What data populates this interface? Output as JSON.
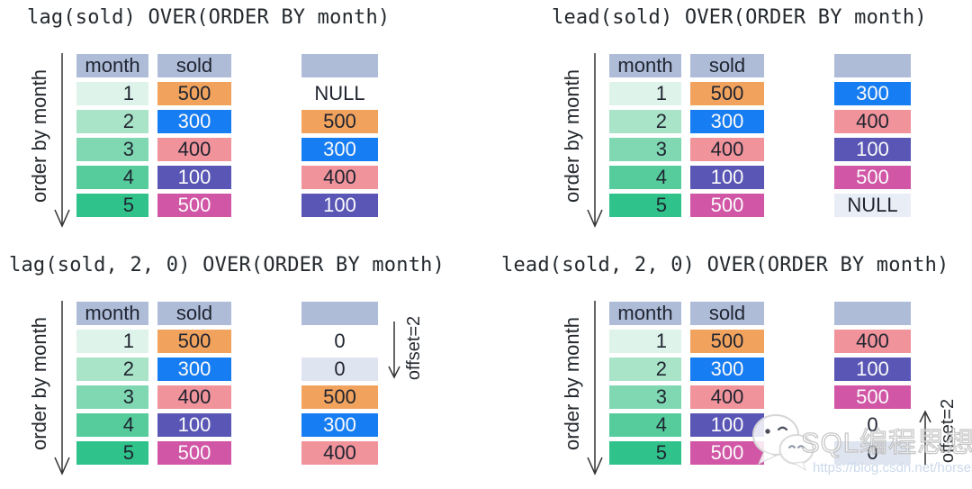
{
  "colors": {
    "header_bg": "#aebcd8",
    "green_1": "#def3e9",
    "green_2": "#a9e4c9",
    "green_3": "#7fd8b2",
    "green_4": "#56cc9c",
    "green_5": "#2fc28a",
    "orange": "#f1a35e",
    "blue": "#177df2",
    "salmon": "#f0939b",
    "purple": "#5956b6",
    "magenta": "#d156a6",
    "white_bg": "#ffffff",
    "null_bg": "#e9edf5",
    "zero_bg": "#dfe5f0",
    "text_dark": "#1f2430",
    "text_light": "#fafafa",
    "line": "#333333"
  },
  "quadrants": [
    {
      "title": "lag(sold) OVER(ORDER BY month)",
      "order_label": "order by month",
      "table": {
        "headers": [
          "month",
          "sold"
        ],
        "rows": [
          {
            "month": "1",
            "month_bg": "green_1",
            "sold": "500",
            "sold_bg": "orange",
            "sold_fg": "dark"
          },
          {
            "month": "2",
            "month_bg": "green_2",
            "sold": "300",
            "sold_bg": "blue",
            "sold_fg": "light"
          },
          {
            "month": "3",
            "month_bg": "green_3",
            "sold": "400",
            "sold_bg": "salmon",
            "sold_fg": "dark"
          },
          {
            "month": "4",
            "month_bg": "green_4",
            "sold": "100",
            "sold_bg": "purple",
            "sold_fg": "light"
          },
          {
            "month": "5",
            "month_bg": "green_5",
            "sold": "500",
            "sold_bg": "magenta",
            "sold_fg": "light"
          }
        ]
      },
      "result": {
        "header": "",
        "cells": [
          {
            "text": "NULL",
            "bg": "white_bg",
            "fg": "dark"
          },
          {
            "text": "500",
            "bg": "orange",
            "fg": "dark"
          },
          {
            "text": "300",
            "bg": "blue",
            "fg": "light"
          },
          {
            "text": "400",
            "bg": "salmon",
            "fg": "dark"
          },
          {
            "text": "100",
            "bg": "purple",
            "fg": "light"
          }
        ]
      },
      "offset": null
    },
    {
      "title": "lead(sold) OVER(ORDER BY month)",
      "order_label": "order by month",
      "table": {
        "headers": [
          "month",
          "sold"
        ],
        "rows": [
          {
            "month": "1",
            "month_bg": "green_1",
            "sold": "500",
            "sold_bg": "orange",
            "sold_fg": "dark"
          },
          {
            "month": "2",
            "month_bg": "green_2",
            "sold": "300",
            "sold_bg": "blue",
            "sold_fg": "light"
          },
          {
            "month": "3",
            "month_bg": "green_3",
            "sold": "400",
            "sold_bg": "salmon",
            "sold_fg": "dark"
          },
          {
            "month": "4",
            "month_bg": "green_4",
            "sold": "100",
            "sold_bg": "purple",
            "sold_fg": "light"
          },
          {
            "month": "5",
            "month_bg": "green_5",
            "sold": "500",
            "sold_bg": "magenta",
            "sold_fg": "light"
          }
        ]
      },
      "result": {
        "header": "",
        "cells": [
          {
            "text": "300",
            "bg": "blue",
            "fg": "light"
          },
          {
            "text": "400",
            "bg": "salmon",
            "fg": "dark"
          },
          {
            "text": "100",
            "bg": "purple",
            "fg": "light"
          },
          {
            "text": "500",
            "bg": "magenta",
            "fg": "light"
          },
          {
            "text": "NULL",
            "bg": "null_bg",
            "fg": "dark"
          }
        ]
      },
      "offset": null
    },
    {
      "title": "lag(sold, 2, 0) OVER(ORDER BY month)",
      "order_label": "order by month",
      "table": {
        "headers": [
          "month",
          "sold"
        ],
        "rows": [
          {
            "month": "1",
            "month_bg": "green_1",
            "sold": "500",
            "sold_bg": "orange",
            "sold_fg": "dark"
          },
          {
            "month": "2",
            "month_bg": "green_2",
            "sold": "300",
            "sold_bg": "blue",
            "sold_fg": "light"
          },
          {
            "month": "3",
            "month_bg": "green_3",
            "sold": "400",
            "sold_bg": "salmon",
            "sold_fg": "dark"
          },
          {
            "month": "4",
            "month_bg": "green_4",
            "sold": "100",
            "sold_bg": "purple",
            "sold_fg": "light"
          },
          {
            "month": "5",
            "month_bg": "green_5",
            "sold": "500",
            "sold_bg": "magenta",
            "sold_fg": "light"
          }
        ]
      },
      "result": {
        "header": "",
        "cells": [
          {
            "text": "0",
            "bg": "white_bg",
            "fg": "dark"
          },
          {
            "text": "0",
            "bg": "zero_bg",
            "fg": "dark"
          },
          {
            "text": "500",
            "bg": "orange",
            "fg": "dark"
          },
          {
            "text": "300",
            "bg": "blue",
            "fg": "light"
          },
          {
            "text": "400",
            "bg": "salmon",
            "fg": "dark"
          }
        ]
      },
      "offset": {
        "label": "offset=2",
        "direction": "down"
      }
    },
    {
      "title": "lead(sold, 2, 0) OVER(ORDER BY month)",
      "order_label": "order by month",
      "table": {
        "headers": [
          "month",
          "sold"
        ],
        "rows": [
          {
            "month": "1",
            "month_bg": "green_1",
            "sold": "500",
            "sold_bg": "orange",
            "sold_fg": "dark"
          },
          {
            "month": "2",
            "month_bg": "green_2",
            "sold": "300",
            "sold_bg": "blue",
            "sold_fg": "light"
          },
          {
            "month": "3",
            "month_bg": "green_3",
            "sold": "400",
            "sold_bg": "salmon",
            "sold_fg": "dark"
          },
          {
            "month": "4",
            "month_bg": "green_4",
            "sold": "100",
            "sold_bg": "purple",
            "sold_fg": "light"
          },
          {
            "month": "5",
            "month_bg": "green_5",
            "sold": "500",
            "sold_bg": "magenta",
            "sold_fg": "light"
          }
        ]
      },
      "result": {
        "header": "",
        "cells": [
          {
            "text": "400",
            "bg": "salmon",
            "fg": "dark"
          },
          {
            "text": "100",
            "bg": "purple",
            "fg": "light"
          },
          {
            "text": "500",
            "bg": "magenta",
            "fg": "light"
          },
          {
            "text": "0",
            "bg": "white_bg",
            "fg": "dark"
          },
          {
            "text": "0",
            "bg": "zero_bg",
            "fg": "dark"
          }
        ]
      },
      "offset": {
        "label": "offset=2",
        "direction": "up"
      }
    }
  ],
  "watermark": {
    "brand": "SQL编程思想",
    "url": "https://blog.csdn.net/horses",
    "icon": "wechat-icon"
  }
}
